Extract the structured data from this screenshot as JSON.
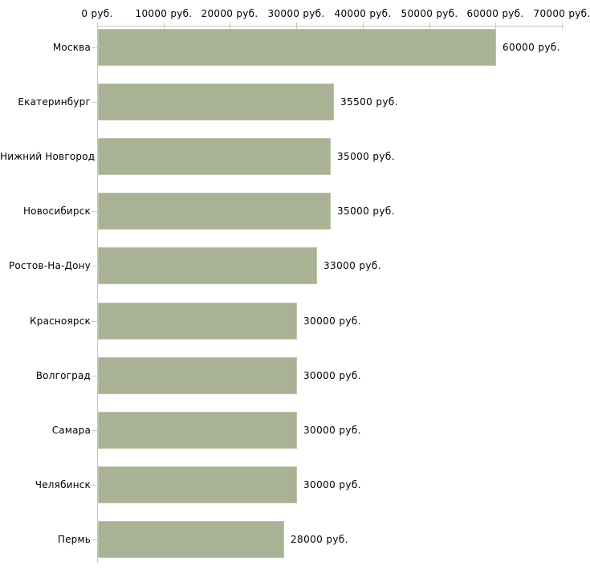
{
  "chart_data": {
    "type": "bar",
    "orientation": "horizontal",
    "title": "",
    "xlabel": "",
    "ylabel": "",
    "categories": [
      "Москва",
      "Екатеринбург",
      "Нижний Новгород",
      "Новосибирск",
      "Ростов-На-Дону",
      "Красноярск",
      "Волгоград",
      "Самара",
      "Челябинск",
      "Пермь"
    ],
    "values": [
      60000,
      35500,
      35000,
      35000,
      33000,
      30000,
      30000,
      30000,
      30000,
      28000
    ],
    "value_labels": [
      "60000 руб.",
      "35500 руб.",
      "35000 руб.",
      "35000 руб.",
      "33000 руб.",
      "30000 руб.",
      "30000 руб.",
      "30000 руб.",
      "30000 руб.",
      "28000 руб."
    ],
    "x_ticks": [
      "0 руб.",
      "10000 руб.",
      "20000 руб.",
      "30000 руб.",
      "40000 руб.",
      "50000 руб.",
      "60000 руб.",
      "70000 руб."
    ],
    "x_tick_values": [
      0,
      10000,
      20000,
      30000,
      40000,
      50000,
      60000,
      70000
    ],
    "xlim": [
      0,
      70000
    ],
    "axis_position": "top",
    "grid": false,
    "legend": "none",
    "colors": {
      "bar_fill": "#a9b294",
      "bar_border": "#bfc5a9",
      "axis_line": "#c6c6c6",
      "tick_mark": "#cfcfa3",
      "text": "#000000",
      "background": "#ffffff"
    }
  }
}
